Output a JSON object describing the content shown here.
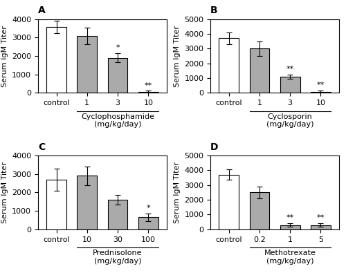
{
  "chart_data": [
    {
      "type": "bar",
      "title": "A",
      "xlabel": "Cyclophosphamide\n(mg/kg/day)",
      "ylabel": "Serum IgM Titer",
      "categories": [
        "control",
        "1",
        "3",
        "10"
      ],
      "values": [
        3580,
        3100,
        1900,
        60
      ],
      "errors": [
        350,
        450,
        250,
        50
      ],
      "colors": [
        "#ffffff",
        "#aaaaaa",
        "#aaaaaa",
        "#aaaaaa"
      ],
      "annotations": [
        {
          "category": "3",
          "text": "*"
        },
        {
          "category": "10",
          "text": "**"
        }
      ],
      "ylim": [
        0,
        4000
      ],
      "yticks": [
        0,
        1000,
        2000,
        3000,
        4000
      ]
    },
    {
      "type": "bar",
      "title": "B",
      "xlabel": "Cyclosporin\n(mg/kg/day)",
      "ylabel": "Serum IgM Titer",
      "categories": [
        "control",
        "1",
        "3",
        "10"
      ],
      "values": [
        3700,
        3000,
        1100,
        80
      ],
      "errors": [
        380,
        500,
        130,
        70
      ],
      "colors": [
        "#ffffff",
        "#aaaaaa",
        "#aaaaaa",
        "#aaaaaa"
      ],
      "annotations": [
        {
          "category": "3",
          "text": "**"
        },
        {
          "category": "10",
          "text": "**"
        }
      ],
      "ylim": [
        0,
        5000
      ],
      "yticks": [
        0,
        1000,
        2000,
        3000,
        4000,
        5000
      ]
    },
    {
      "type": "bar",
      "title": "C",
      "xlabel": "Prednisolone\n(mg/kg/day)",
      "ylabel": "Serum IgM Titer",
      "categories": [
        "control",
        "10",
        "30",
        "100"
      ],
      "values": [
        2700,
        2900,
        1600,
        650
      ],
      "errors": [
        600,
        500,
        250,
        200
      ],
      "colors": [
        "#ffffff",
        "#aaaaaa",
        "#aaaaaa",
        "#aaaaaa"
      ],
      "annotations": [
        {
          "category": "100",
          "text": "*"
        }
      ],
      "ylim": [
        0,
        4000
      ],
      "yticks": [
        0,
        1000,
        2000,
        3000,
        4000
      ]
    },
    {
      "type": "bar",
      "title": "D",
      "xlabel": "Methotrexate\n(mg/kg/day)",
      "ylabel": "Serum IgM Titer",
      "categories": [
        "control",
        "0.2",
        "1",
        "5"
      ],
      "values": [
        3700,
        2500,
        280,
        280
      ],
      "errors": [
        350,
        400,
        120,
        120
      ],
      "colors": [
        "#ffffff",
        "#aaaaaa",
        "#aaaaaa",
        "#aaaaaa"
      ],
      "annotations": [
        {
          "category": "1",
          "text": "**"
        },
        {
          "category": "5",
          "text": "**"
        }
      ],
      "ylim": [
        0,
        5000
      ],
      "yticks": [
        0,
        1000,
        2000,
        3000,
        4000,
        5000
      ]
    }
  ]
}
